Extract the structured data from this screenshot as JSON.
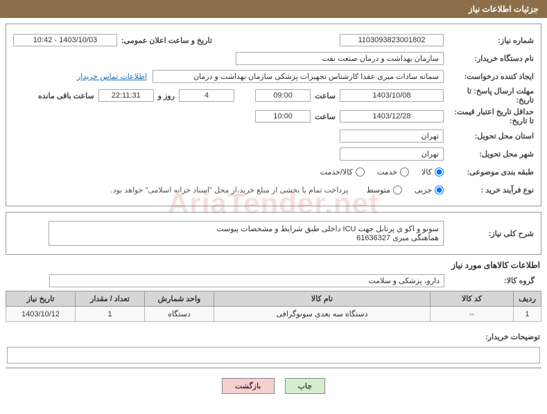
{
  "header_title": "جزئیات اطلاعات نیاز",
  "labels": {
    "need_no": "شماره نیاز:",
    "announce": "تاریخ و ساعت اعلان عمومی:",
    "buyer_org": "نام دستگاه خریدار:",
    "requester": "ایجاد کننده درخواست:",
    "contact_link": "اطلاعات تماس خریدار",
    "reply_deadline": "مهلت ارسال پاسخ: تا تاریخ:",
    "hour": "ساعت",
    "days_and": "روز و",
    "remaining": "ساعت باقی مانده",
    "price_validity": "حداقل تاریخ اعتبار قیمت: تا تاریخ:",
    "province": "استان محل تحویل:",
    "city": "شهر محل تحویل:",
    "category": "طبقه بندی موضوعی:",
    "buy_process": "نوع فرآیند خرید :",
    "treasury_note": "پرداخت تمام یا بخشی از مبلغ خرید،از محل \"اسناد خزانه اسلامی\" خواهد بود.",
    "need_desc": "شرح کلی نیاز:",
    "goods_info": "اطلاعات کالاهای مورد نیاز",
    "goods_group": "گروه کالا:",
    "buyer_comments": "توضیحات خریدار:"
  },
  "values": {
    "need_no": "1103093823001802",
    "announce": "1403/10/03 - 10:42",
    "buyer_org": "سازمان بهداشت و درمان صنعت نفت",
    "requester": "سمانه سادات میری عقدا کارشناس تجهیزات پزشکی سازمان بهداشت و درمان",
    "reply_date": "1403/10/08",
    "reply_hour": "09:00",
    "days_left": "4",
    "time_left": "22:11:31",
    "price_date": "1403/12/28",
    "price_hour": "10:00",
    "province": "تهران",
    "city": "تهران",
    "need_desc_1": "سونو و اکو ی پرتابل جهت ICU داخلی طبق شرایط و مشخصات پیوست",
    "need_desc_2": "هماهنگی میری 61636327",
    "goods_group": "دارو، پزشکی و سلامت",
    "buyer_comments": ""
  },
  "radios": {
    "cat_goods": "کالا",
    "cat_service": "خدمت",
    "cat_both": "کالا/خدمت",
    "proc_partial": "جزیی",
    "proc_medium": "متوسط"
  },
  "radio_state": {
    "cat_goods": true,
    "cat_service": false,
    "cat_both": false,
    "proc_partial": true,
    "proc_medium": false
  },
  "table": {
    "headers": [
      "ردیف",
      "کد کالا",
      "نام کالا",
      "واحد شمارش",
      "تعداد / مقدار",
      "تاریخ نیاز"
    ],
    "col_widths": [
      "40px",
      "120px",
      "auto",
      "100px",
      "100px",
      "100px"
    ],
    "rows": [
      [
        "1",
        "--",
        "دستگاه سه بعدی سونوگرافی",
        "دستگاه",
        "1",
        "1403/10/12"
      ]
    ]
  },
  "buttons": {
    "print": "چاپ",
    "back": "بازگشت"
  },
  "watermark": "AriaTender.net",
  "colors": {
    "header_bg": "#8c6f4a",
    "border": "#999999",
    "th_bg": "#d6d6d6",
    "btn_print": "#d4eecd",
    "btn_back": "#f6cfcf",
    "link": "#1a73b7"
  }
}
